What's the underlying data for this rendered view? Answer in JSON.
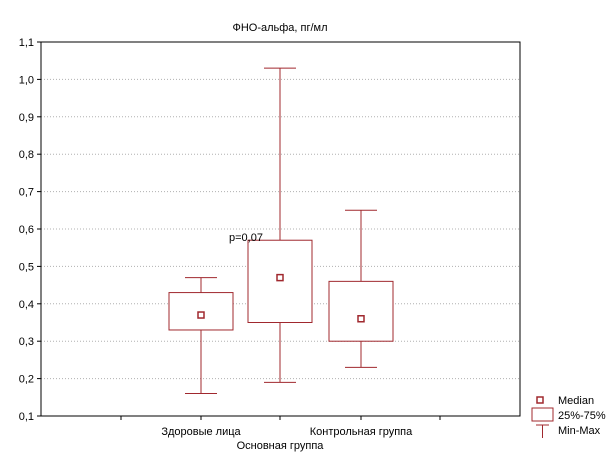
{
  "chart_data": {
    "type": "box",
    "title": "ФНО-альфа, пг/мл",
    "categories": [
      "Здоровые лица",
      "Основная группа",
      "Контрольная группа"
    ],
    "boxes": [
      {
        "category": "Здоровые лица",
        "median": 0.37,
        "q1": 0.33,
        "q3": 0.43,
        "min": 0.16,
        "max": 0.47
      },
      {
        "category": "Основная группа",
        "median": 0.47,
        "q1": 0.35,
        "q3": 0.57,
        "min": 0.19,
        "max": 1.03
      },
      {
        "category": "Контрольная группа",
        "median": 0.36,
        "q1": 0.3,
        "q3": 0.46,
        "min": 0.23,
        "max": 0.65
      }
    ],
    "y_ticks": [
      "0,1",
      "0,2",
      "0,3",
      "0,4",
      "0,5",
      "0,6",
      "0,7",
      "0,8",
      "0,9",
      "1,0",
      "1,1"
    ],
    "ylim": [
      0.1,
      1.1
    ],
    "annotation": "p=0,07",
    "grid": "horizontal dotted",
    "legend": {
      "position": "bottom-right",
      "items": [
        "Median",
        "25%-75%",
        "Min-Max"
      ]
    },
    "colors": {
      "box": "#a0282e",
      "frame": "#000000",
      "grid": "#b0b0b0"
    }
  }
}
